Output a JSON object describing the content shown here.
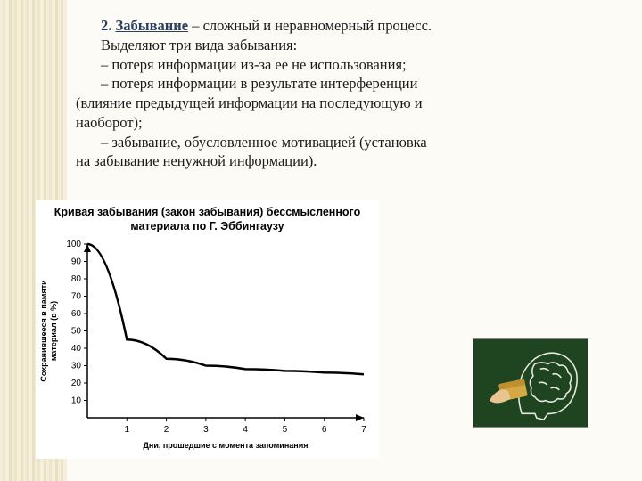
{
  "text": {
    "heading_num": "2. ",
    "heading_word": "Забывание",
    "heading_rest": " – сложный и неравномерный процесс.",
    "line2": "Выделяют три вида забывания:",
    "bullet1": "–  потеря информации из-за ее не использования;",
    "bullet2": "–  потеря   информации в результате интерференции",
    "bullet2b": "(влияние предыдущей информации на последующую и",
    "bullet2c": "наоборот);",
    "bullet3": "–  забывание, обусловленное мотивацией (установка",
    "bullet3b": "на забывание ненужной информации)."
  },
  "chart": {
    "title_l1": "Кривая забывания (закон забывания) бессмысленного",
    "title_l2": "материала по Г. Эббингаузу",
    "type": "line",
    "x_values": [
      0,
      1,
      2,
      3,
      4,
      5,
      6,
      7
    ],
    "y_values": [
      100,
      45,
      34,
      30,
      28,
      27,
      26,
      25
    ],
    "xlim": [
      0,
      7
    ],
    "ylim": [
      0,
      100
    ],
    "ytick_step": 10,
    "xtick_step": 1,
    "y_ticks": [
      "10",
      "20",
      "30",
      "40",
      "50",
      "60",
      "70",
      "80",
      "90",
      "100"
    ],
    "x_ticks": [
      "1",
      "2",
      "3",
      "4",
      "5",
      "6",
      "7"
    ],
    "xlabel": "Дни, прошедшие с момента запоминания",
    "ylabel": "Сохранившееся в памяти материал (в %)",
    "axis_color": "#000000",
    "line_color": "#000000",
    "line_width": 2.5,
    "background_color": "#ffffff",
    "tick_fontsize": 10,
    "label_fontsize": 9
  },
  "brain": {
    "bg_color": "#1e4420",
    "chalk_color": "#e8e8e0",
    "sponge_color": "#d4a842"
  }
}
